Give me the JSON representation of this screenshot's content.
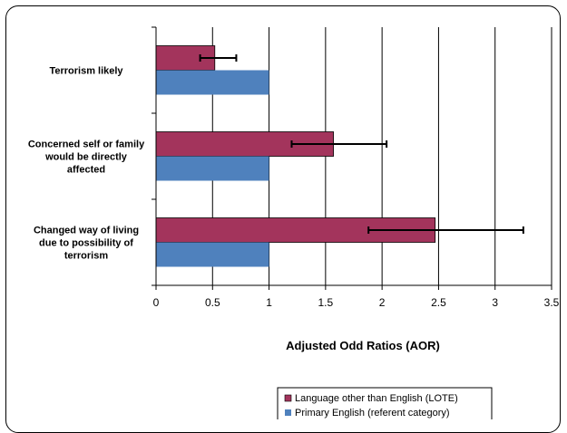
{
  "chart_data": {
    "type": "bar",
    "orientation": "horizontal",
    "categories": [
      [
        "Terrorism likely"
      ],
      [
        "Concerned self or family",
        "would be directly",
        "affected"
      ],
      [
        "Changed way of living",
        "due to possibility of",
        "terrorism"
      ]
    ],
    "series": [
      {
        "name": "Language other than English (LOTE)",
        "values": [
          0.52,
          1.57,
          2.47
        ],
        "error_low": [
          0.39,
          1.2,
          1.88
        ],
        "error_high": [
          0.71,
          2.04,
          3.25
        ],
        "color": "#a3345c"
      },
      {
        "name": "Primary English (referent category)",
        "values": [
          1,
          1,
          1
        ],
        "color": "#4f81bd"
      }
    ],
    "xlim": [
      0,
      3.5
    ],
    "xticks": [
      "0",
      "0.5",
      "1",
      "1.5",
      "2",
      "2.5",
      "3",
      "3.5"
    ],
    "xlabel": "Adjusted Odd Ratios (AOR)",
    "grid": true,
    "legend_position": "bottom-right"
  }
}
